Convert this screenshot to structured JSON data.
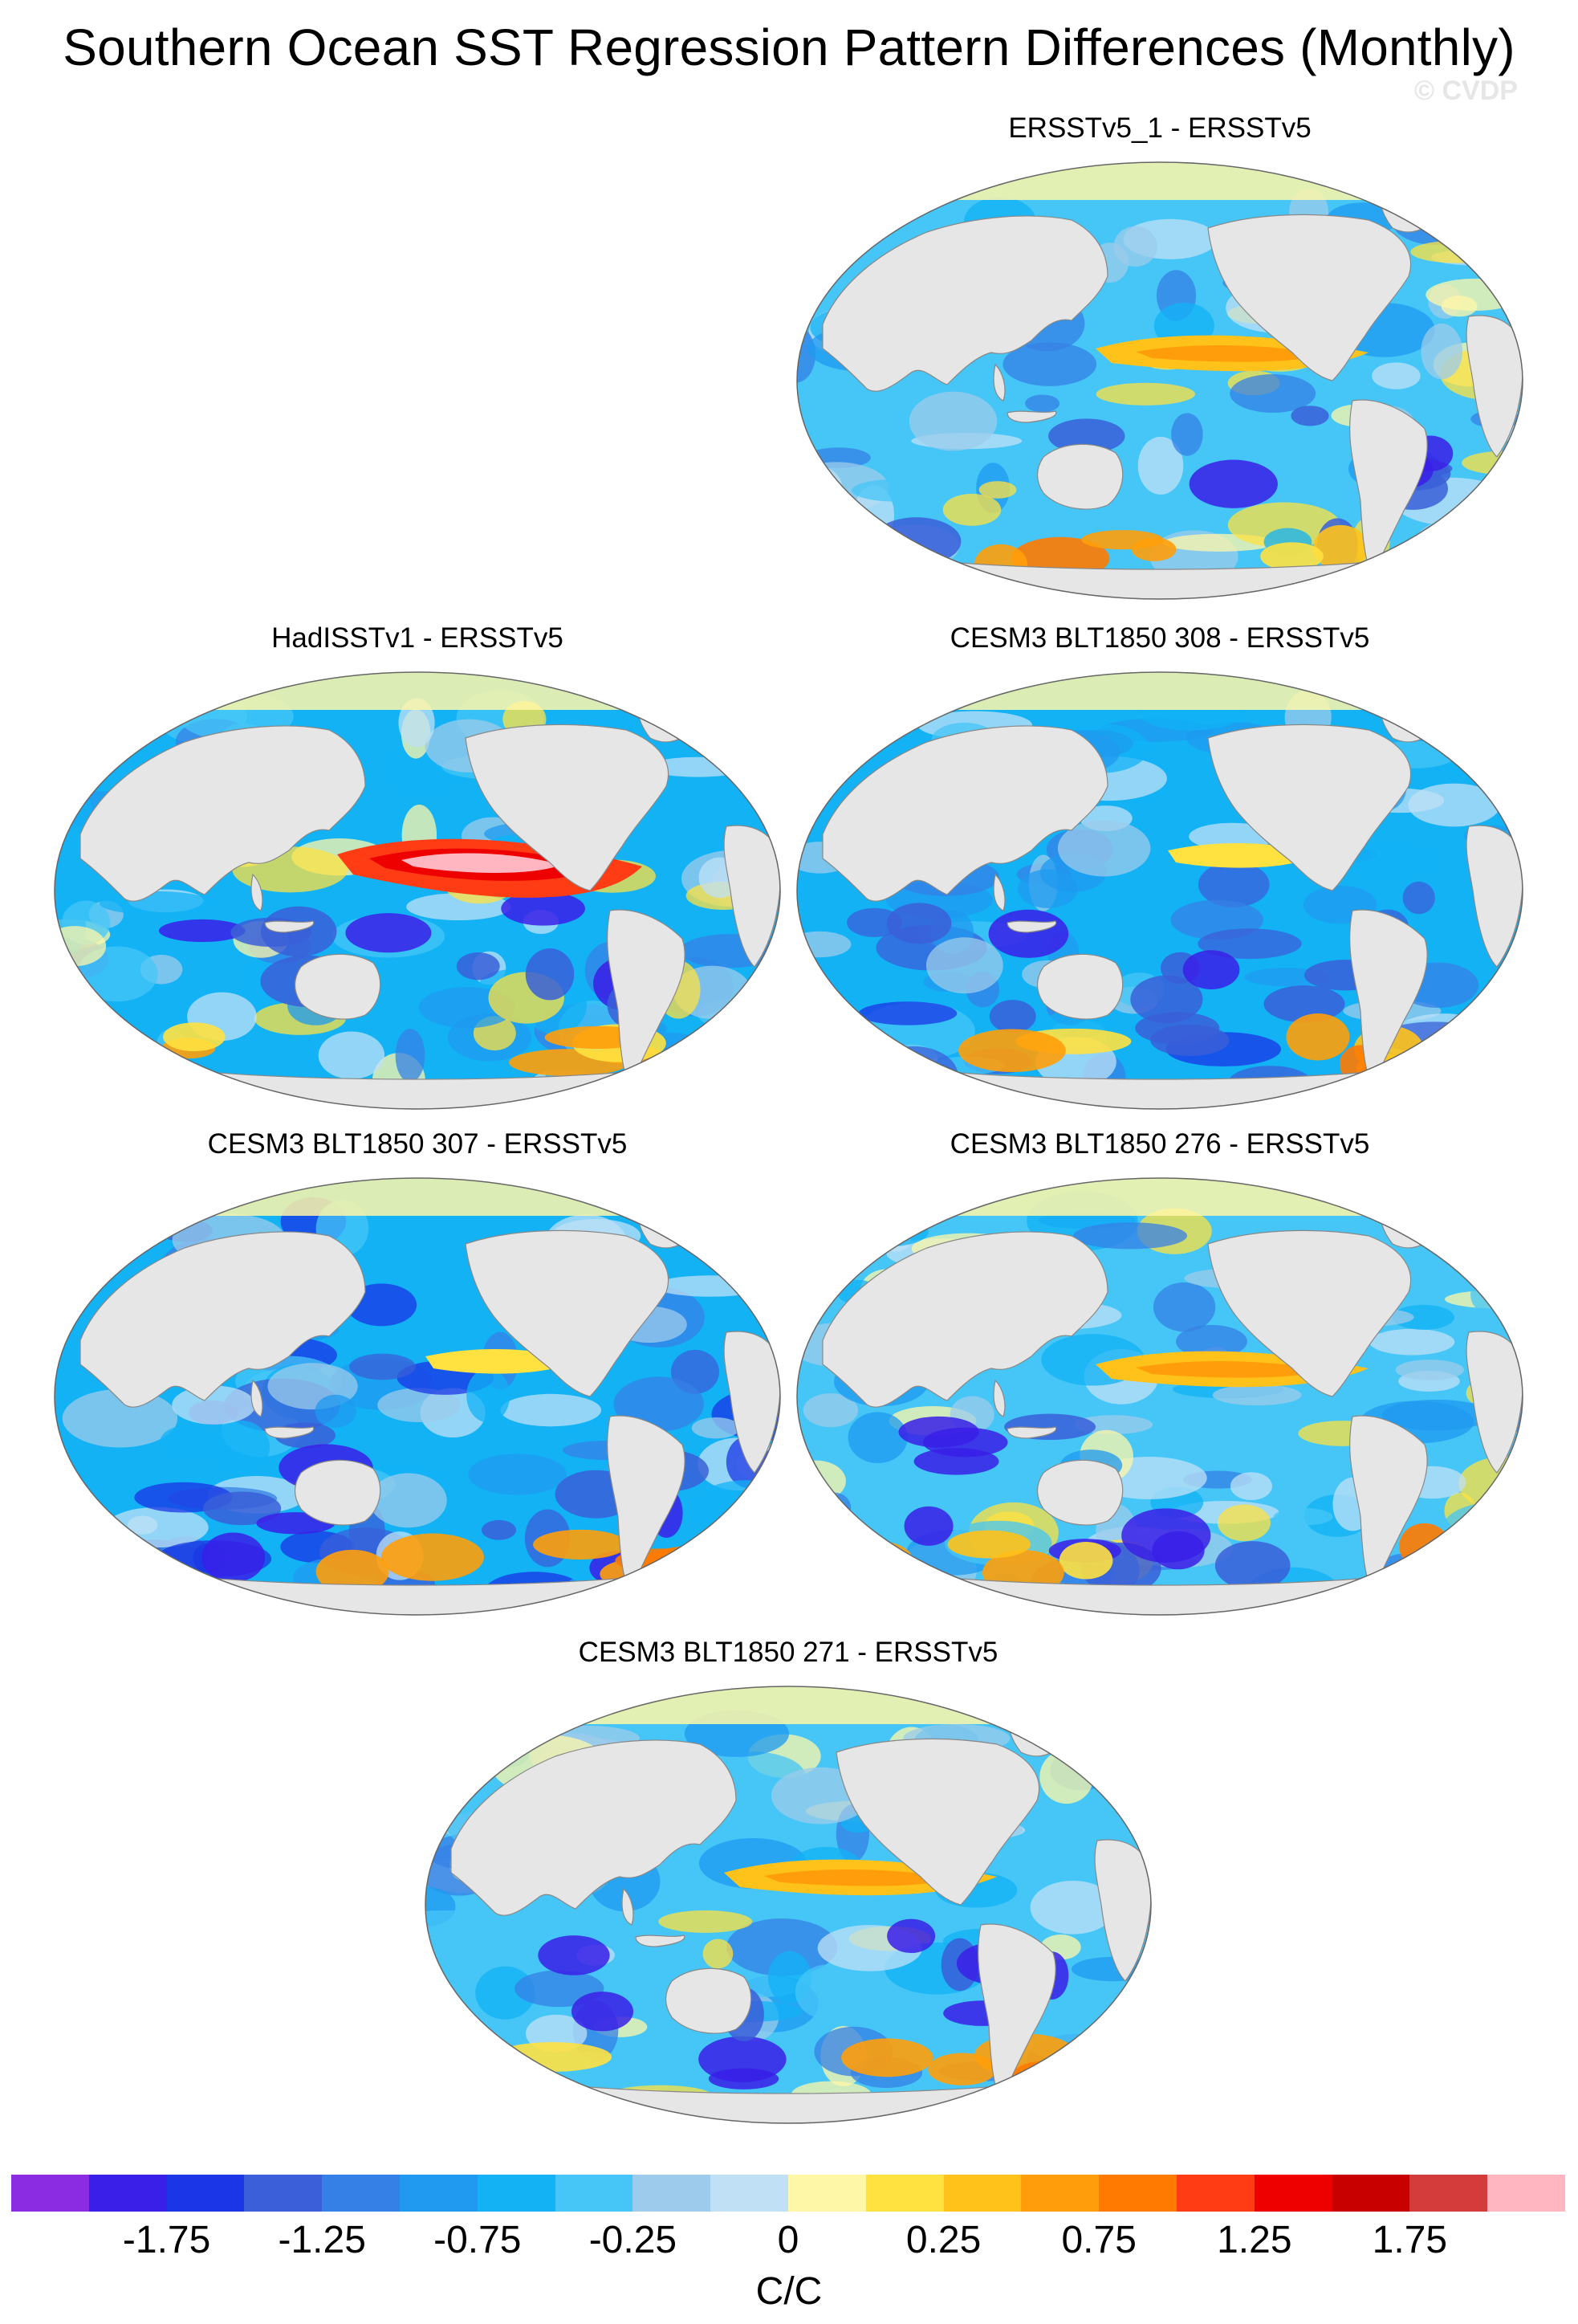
{
  "figure": {
    "title": "Southern Ocean SST Regression Pattern Differences (Monthly)",
    "watermark": "© CVDP"
  },
  "panels": [
    {
      "id": "p1",
      "title": "ERSSTv5_1 - ERSSTv5",
      "pattern": "mixed-warm-tropics"
    },
    {
      "id": "p2",
      "title": "HadISSTv1 - ERSSTv5",
      "pattern": "strong-warm-eq-pacific"
    },
    {
      "id": "p3",
      "title": "CESM3 BLT1850 308 - ERSSTv5",
      "pattern": "mostly-cool"
    },
    {
      "id": "p4",
      "title": "CESM3 BLT1850 307 - ERSSTv5",
      "pattern": "mostly-cool"
    },
    {
      "id": "p5",
      "title": "CESM3 BLT1850 276 - ERSSTv5",
      "pattern": "warm-eq-band"
    },
    {
      "id": "p6",
      "title": "CESM3 BLT1850 271 - ERSSTv5",
      "pattern": "warm-eq-band"
    }
  ],
  "colorbar": {
    "colors": [
      "#8b2be2",
      "#3a1fe8",
      "#1a36e6",
      "#3a5fd8",
      "#3580e6",
      "#1f9af0",
      "#12b2f5",
      "#45c6f7",
      "#9ccbeb",
      "#bfe0f5",
      "#fff7a8",
      "#ffe140",
      "#ffc21a",
      "#ff9e0a",
      "#ff7a00",
      "#ff3c14",
      "#ee0000",
      "#c80000",
      "#d43c3c",
      "#ffb6c1"
    ],
    "tick_labels": [
      "-1.75",
      "-1.25",
      "-0.75",
      "-0.25",
      "0",
      "0.25",
      "0.75",
      "1.25",
      "1.75"
    ],
    "units": "C/C"
  }
}
